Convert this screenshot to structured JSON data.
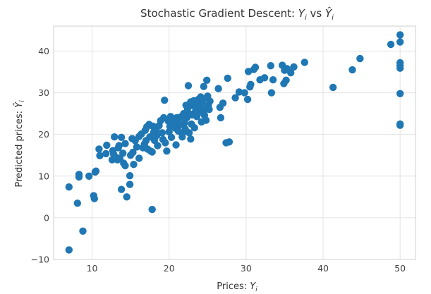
{
  "chart_data": {
    "type": "scatter",
    "title": {
      "prefix": "Stochastic Gradient Descent: ",
      "y": "Y",
      "sub": "i",
      "vs": " vs ",
      "yhat": "Ŷ"
    },
    "xlabel": {
      "text": "Prices: ",
      "var": "Y",
      "sub": "i"
    },
    "ylabel": {
      "text": "Predicted prices: ",
      "var": "Ŷ",
      "sub": "i"
    },
    "xlim": [
      5,
      52
    ],
    "ylim": [
      -10,
      46
    ],
    "xticks": [
      10,
      20,
      30,
      40,
      50
    ],
    "yticks": [
      -10,
      0,
      10,
      20,
      30,
      40
    ],
    "grid": true,
    "marker_color": "#1f77b4",
    "points": [
      [
        7.0,
        -7.7
      ],
      [
        7.0,
        7.4
      ],
      [
        8.1,
        3.5
      ],
      [
        8.3,
        9.8
      ],
      [
        8.3,
        10.4
      ],
      [
        8.8,
        -3.2
      ],
      [
        9.6,
        10.0
      ],
      [
        10.2,
        5.3
      ],
      [
        10.3,
        4.6
      ],
      [
        10.4,
        11.0
      ],
      [
        10.5,
        11.2
      ],
      [
        10.9,
        16.5
      ],
      [
        11.0,
        14.9
      ],
      [
        11.8,
        15.4
      ],
      [
        11.9,
        17.4
      ],
      [
        12.6,
        13.9
      ],
      [
        12.7,
        16.1
      ],
      [
        12.8,
        15.3
      ],
      [
        12.9,
        19.4
      ],
      [
        13.1,
        14.5
      ],
      [
        13.3,
        13.9
      ],
      [
        13.4,
        16.8
      ],
      [
        13.5,
        17.3
      ],
      [
        13.6,
        14.3
      ],
      [
        13.8,
        6.8
      ],
      [
        13.8,
        19.3
      ],
      [
        14.0,
        15.5
      ],
      [
        14.1,
        13.1
      ],
      [
        14.3,
        12.5
      ],
      [
        14.3,
        17.8
      ],
      [
        14.5,
        5.0
      ],
      [
        14.9,
        8.0
      ],
      [
        14.9,
        10.1
      ],
      [
        15.0,
        15.0
      ],
      [
        15.2,
        19.0
      ],
      [
        15.3,
        15.7
      ],
      [
        15.4,
        12.8
      ],
      [
        15.6,
        18.5
      ],
      [
        15.8,
        17.0
      ],
      [
        16.1,
        14.3
      ],
      [
        16.1,
        19.5
      ],
      [
        16.4,
        20.1
      ],
      [
        16.6,
        16.8
      ],
      [
        16.8,
        17.7
      ],
      [
        16.9,
        21.0
      ],
      [
        17.0,
        18.5
      ],
      [
        17.1,
        21.8
      ],
      [
        17.2,
        16.5
      ],
      [
        17.4,
        22.4
      ],
      [
        17.5,
        19.4
      ],
      [
        17.6,
        16.0
      ],
      [
        17.8,
        15.8
      ],
      [
        17.8,
        2.0
      ],
      [
        17.9,
        22.0
      ],
      [
        18.0,
        20.5
      ],
      [
        18.1,
        18.6
      ],
      [
        18.3,
        21.2
      ],
      [
        18.4,
        19.8
      ],
      [
        18.5,
        17.3
      ],
      [
        18.7,
        22.1
      ],
      [
        18.9,
        23.3
      ],
      [
        19.1,
        20.4
      ],
      [
        19.2,
        18.8
      ],
      [
        19.3,
        24.0
      ],
      [
        19.4,
        28.2
      ],
      [
        19.5,
        18.0
      ],
      [
        19.7,
        16.0
      ],
      [
        19.9,
        23.2
      ],
      [
        20.0,
        20.6
      ],
      [
        20.1,
        21.9
      ],
      [
        20.2,
        24.3
      ],
      [
        20.3,
        19.3
      ],
      [
        20.4,
        23.5
      ],
      [
        20.6,
        22.5
      ],
      [
        20.8,
        21.5
      ],
      [
        20.9,
        17.5
      ],
      [
        21.0,
        24.0
      ],
      [
        21.1,
        23.0
      ],
      [
        21.2,
        20.8
      ],
      [
        21.4,
        22.3
      ],
      [
        21.5,
        24.2
      ],
      [
        21.7,
        20.1
      ],
      [
        21.7,
        19.4
      ],
      [
        21.9,
        25.0
      ],
      [
        22.0,
        22.8
      ],
      [
        22.1,
        21.3
      ],
      [
        22.2,
        27.0
      ],
      [
        22.3,
        24.0
      ],
      [
        22.4,
        26.2
      ],
      [
        22.5,
        31.7
      ],
      [
        22.6,
        20.4
      ],
      [
        22.7,
        24.9
      ],
      [
        22.8,
        27.8
      ],
      [
        22.8,
        18.9
      ],
      [
        22.9,
        22.5
      ],
      [
        23.0,
        24.7
      ],
      [
        23.1,
        26.9
      ],
      [
        23.2,
        28.1
      ],
      [
        23.3,
        21.6
      ],
      [
        23.4,
        25.4
      ],
      [
        23.5,
        26.5
      ],
      [
        23.6,
        24.3
      ],
      [
        23.7,
        27.4
      ],
      [
        23.8,
        28.4
      ],
      [
        23.9,
        25.5
      ],
      [
        24.0,
        26.7
      ],
      [
        24.1,
        29.0
      ],
      [
        24.2,
        23.0
      ],
      [
        24.3,
        27.7
      ],
      [
        24.4,
        25.2
      ],
      [
        24.5,
        31.5
      ],
      [
        24.6,
        24.6
      ],
      [
        24.7,
        26.1
      ],
      [
        24.8,
        28.7
      ],
      [
        24.8,
        23.4
      ],
      [
        24.9,
        33.0
      ],
      [
        25.0,
        29.2
      ],
      [
        25.1,
        27.0
      ],
      [
        25.2,
        26.0
      ],
      [
        25.3,
        28.0
      ],
      [
        26.4,
        31.0
      ],
      [
        26.6,
        26.5
      ],
      [
        26.7,
        24.0
      ],
      [
        27.0,
        27.5
      ],
      [
        27.4,
        18.0
      ],
      [
        27.6,
        33.5
      ],
      [
        27.8,
        18.2
      ],
      [
        28.6,
        28.8
      ],
      [
        29.1,
        30.2
      ],
      [
        29.8,
        30.0
      ],
      [
        30.2,
        28.4
      ],
      [
        30.3,
        35.1
      ],
      [
        30.5,
        31.4
      ],
      [
        30.6,
        32.0
      ],
      [
        31.0,
        35.6
      ],
      [
        31.2,
        36.1
      ],
      [
        31.8,
        33.1
      ],
      [
        32.4,
        33.6
      ],
      [
        33.2,
        36.5
      ],
      [
        33.3,
        30.0
      ],
      [
        33.5,
        33.1
      ],
      [
        34.7,
        36.6
      ],
      [
        34.9,
        32.2
      ],
      [
        35.0,
        35.4
      ],
      [
        35.2,
        33.0
      ],
      [
        35.3,
        35.8
      ],
      [
        35.8,
        34.8
      ],
      [
        36.2,
        36.2
      ],
      [
        37.6,
        37.3
      ],
      [
        41.3,
        31.3
      ],
      [
        43.8,
        35.5
      ],
      [
        44.8,
        38.2
      ],
      [
        48.8,
        41.6
      ],
      [
        50.0,
        43.9
      ],
      [
        50.0,
        42.2
      ],
      [
        50.0,
        37.2
      ],
      [
        50.0,
        36.5
      ],
      [
        50.0,
        35.9
      ],
      [
        50.0,
        29.8
      ],
      [
        50.0,
        22.5
      ],
      [
        50.0,
        22.2
      ]
    ]
  }
}
